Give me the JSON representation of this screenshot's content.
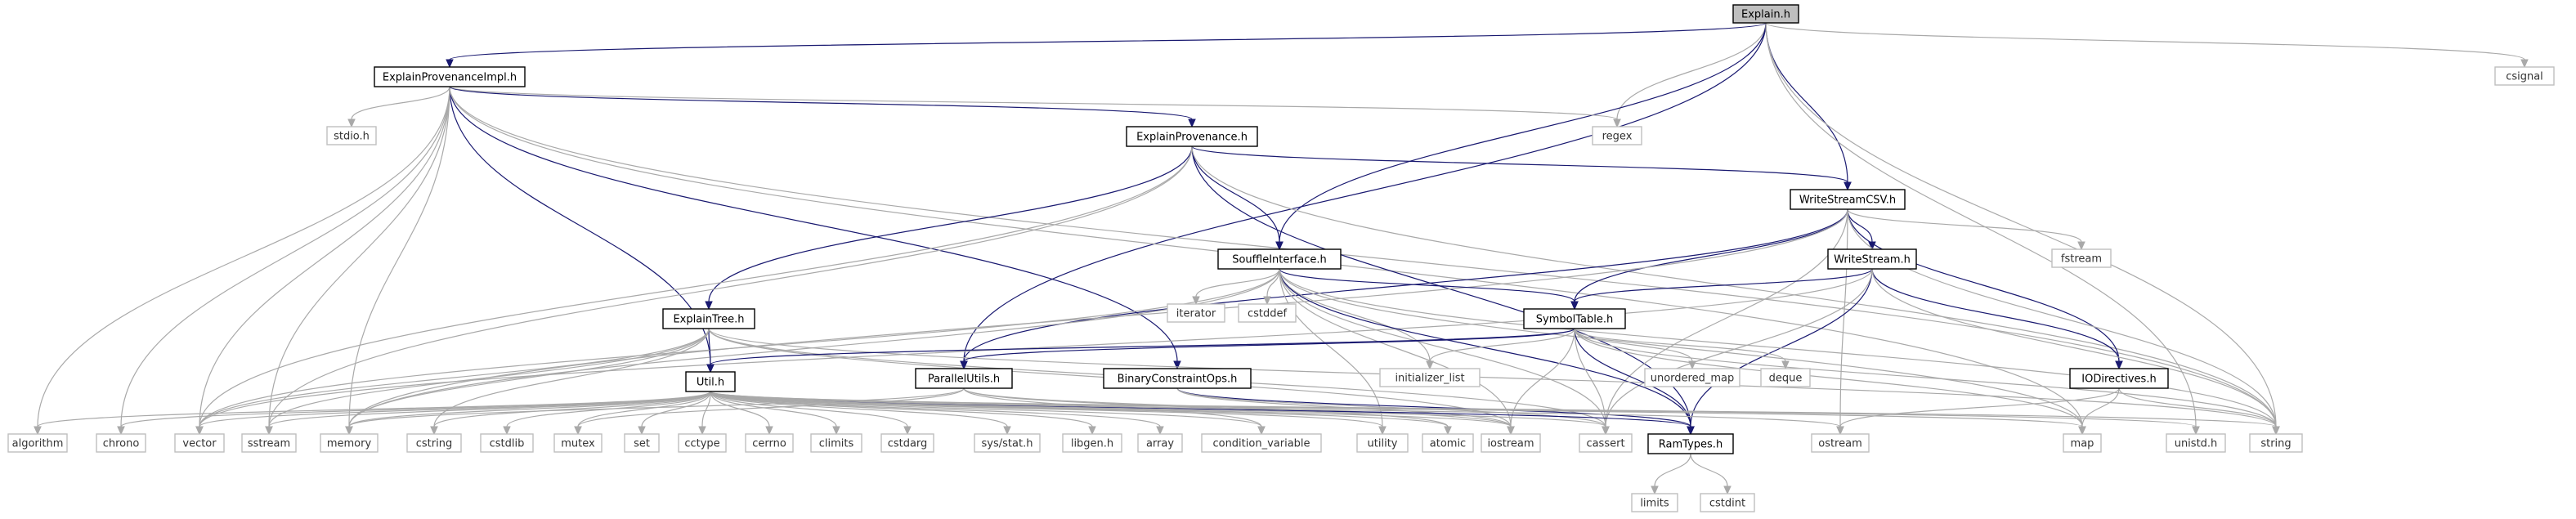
{
  "colors": {
    "edge": "#191970",
    "edge_sys": "#a9a9a9",
    "root_fill": "#bfbfbf",
    "border": "#000000",
    "sys_border": "#bfbfbf"
  },
  "nodes": [
    {
      "id": "explain_h",
      "label": "Explain.h",
      "kind": "root"
    },
    {
      "id": "explain_provenance_impl_h",
      "label": "ExplainProvenanceImpl.h",
      "kind": "local"
    },
    {
      "id": "csignal",
      "label": "csignal",
      "kind": "sys"
    },
    {
      "id": "regex",
      "label": "regex",
      "kind": "sys"
    },
    {
      "id": "stdio_h",
      "label": "stdio.h",
      "kind": "sys"
    },
    {
      "id": "explain_provenance_h",
      "label": "ExplainProvenance.h",
      "kind": "local"
    },
    {
      "id": "write_stream_csv_h",
      "label": "WriteStreamCSV.h",
      "kind": "local"
    },
    {
      "id": "fstream",
      "label": "fstream",
      "kind": "sys"
    },
    {
      "id": "souffle_interface_h",
      "label": "SouffleInterface.h",
      "kind": "local"
    },
    {
      "id": "write_stream_h",
      "label": "WriteStream.h",
      "kind": "local"
    },
    {
      "id": "iterator",
      "label": "iterator",
      "kind": "sys"
    },
    {
      "id": "cstddef",
      "label": "cstddef",
      "kind": "sys"
    },
    {
      "id": "explain_tree_h",
      "label": "ExplainTree.h",
      "kind": "local"
    },
    {
      "id": "symbol_table_h",
      "label": "SymbolTable.h",
      "kind": "local"
    },
    {
      "id": "initializer_list",
      "label": "initializer_list",
      "kind": "sys"
    },
    {
      "id": "unordered_map",
      "label": "unordered_map",
      "kind": "sys"
    },
    {
      "id": "deque",
      "label": "deque",
      "kind": "sys"
    },
    {
      "id": "parallel_utils_h",
      "label": "ParallelUtils.h",
      "kind": "local"
    },
    {
      "id": "binary_constraint_ops_h",
      "label": "BinaryConstraintOps.h",
      "kind": "local"
    },
    {
      "id": "util_h",
      "label": "Util.h",
      "kind": "local"
    },
    {
      "id": "io_directives_h",
      "label": "IODirectives.h",
      "kind": "local"
    },
    {
      "id": "algorithm",
      "label": "algorithm",
      "kind": "sys"
    },
    {
      "id": "chrono",
      "label": "chrono",
      "kind": "sys"
    },
    {
      "id": "vector",
      "label": "vector",
      "kind": "sys"
    },
    {
      "id": "sstream",
      "label": "sstream",
      "kind": "sys"
    },
    {
      "id": "memory",
      "label": "memory",
      "kind": "sys"
    },
    {
      "id": "cstring",
      "label": "cstring",
      "kind": "sys"
    },
    {
      "id": "cstdlib",
      "label": "cstdlib",
      "kind": "sys"
    },
    {
      "id": "mutex",
      "label": "mutex",
      "kind": "sys"
    },
    {
      "id": "set",
      "label": "set",
      "kind": "sys"
    },
    {
      "id": "cctype",
      "label": "cctype",
      "kind": "sys"
    },
    {
      "id": "cerrno",
      "label": "cerrno",
      "kind": "sys"
    },
    {
      "id": "climits",
      "label": "climits",
      "kind": "sys"
    },
    {
      "id": "cstdarg",
      "label": "cstdarg",
      "kind": "sys"
    },
    {
      "id": "sys_stat_h",
      "label": "sys/stat.h",
      "kind": "sys"
    },
    {
      "id": "libgen_h",
      "label": "libgen.h",
      "kind": "sys"
    },
    {
      "id": "array",
      "label": "array",
      "kind": "sys"
    },
    {
      "id": "condition_variable",
      "label": "condition_variable",
      "kind": "sys"
    },
    {
      "id": "utility",
      "label": "utility",
      "kind": "sys"
    },
    {
      "id": "atomic",
      "label": "atomic",
      "kind": "sys"
    },
    {
      "id": "iostream",
      "label": "iostream",
      "kind": "sys"
    },
    {
      "id": "cassert",
      "label": "cassert",
      "kind": "sys"
    },
    {
      "id": "ram_types_h",
      "label": "RamTypes.h",
      "kind": "local"
    },
    {
      "id": "ostream",
      "label": "ostream",
      "kind": "sys"
    },
    {
      "id": "map",
      "label": "map",
      "kind": "sys"
    },
    {
      "id": "unistd_h",
      "label": "unistd.h",
      "kind": "sys"
    },
    {
      "id": "string",
      "label": "string",
      "kind": "sys"
    },
    {
      "id": "limits",
      "label": "limits",
      "kind": "sys"
    },
    {
      "id": "cstdint",
      "label": "cstdint",
      "kind": "sys"
    }
  ],
  "edges": [
    [
      "explain_h",
      "explain_provenance_impl_h"
    ],
    [
      "explain_h",
      "csignal"
    ],
    [
      "explain_h",
      "regex"
    ],
    [
      "explain_h",
      "write_stream_csv_h"
    ],
    [
      "explain_h",
      "souffle_interface_h"
    ],
    [
      "explain_h",
      "parallel_utils_h"
    ],
    [
      "explain_h",
      "unistd_h"
    ],
    [
      "explain_h",
      "string"
    ],
    [
      "explain_provenance_impl_h",
      "regex"
    ],
    [
      "explain_provenance_impl_h",
      "stdio_h"
    ],
    [
      "explain_provenance_impl_h",
      "explain_provenance_h"
    ],
    [
      "explain_provenance_impl_h",
      "binary_constraint_ops_h"
    ],
    [
      "explain_provenance_impl_h",
      "util_h"
    ],
    [
      "explain_provenance_impl_h",
      "algorithm"
    ],
    [
      "explain_provenance_impl_h",
      "chrono"
    ],
    [
      "explain_provenance_impl_h",
      "vector"
    ],
    [
      "explain_provenance_impl_h",
      "sstream"
    ],
    [
      "explain_provenance_impl_h",
      "memory"
    ],
    [
      "explain_provenance_impl_h",
      "map"
    ],
    [
      "explain_provenance_impl_h",
      "string"
    ],
    [
      "explain_provenance_h",
      "write_stream_csv_h"
    ],
    [
      "explain_provenance_h",
      "souffle_interface_h"
    ],
    [
      "explain_provenance_h",
      "explain_tree_h"
    ],
    [
      "explain_provenance_h",
      "ram_types_h"
    ],
    [
      "explain_provenance_h",
      "vector"
    ],
    [
      "explain_provenance_h",
      "sstream"
    ],
    [
      "explain_provenance_h",
      "string"
    ],
    [
      "write_stream_csv_h",
      "fstream"
    ],
    [
      "write_stream_csv_h",
      "write_stream_h"
    ],
    [
      "write_stream_csv_h",
      "symbol_table_h"
    ],
    [
      "write_stream_csv_h",
      "io_directives_h"
    ],
    [
      "write_stream_csv_h",
      "parallel_utils_h"
    ],
    [
      "write_stream_csv_h",
      "ostream"
    ],
    [
      "write_stream_csv_h",
      "string"
    ],
    [
      "write_stream_csv_h",
      "cassert"
    ],
    [
      "write_stream_csv_h",
      "memory"
    ],
    [
      "write_stream_h",
      "symbol_table_h"
    ],
    [
      "write_stream_h",
      "io_directives_h"
    ],
    [
      "write_stream_h",
      "ram_types_h"
    ],
    [
      "write_stream_h",
      "cassert"
    ],
    [
      "write_stream_h",
      "vector"
    ],
    [
      "write_stream_h",
      "string"
    ],
    [
      "souffle_interface_h",
      "iterator"
    ],
    [
      "souffle_interface_h",
      "cstddef"
    ],
    [
      "souffle_interface_h",
      "symbol_table_h"
    ],
    [
      "souffle_interface_h",
      "initializer_list"
    ],
    [
      "souffle_interface_h",
      "ram_types_h"
    ],
    [
      "souffle_interface_h",
      "cassert"
    ],
    [
      "souffle_interface_h",
      "iostream"
    ],
    [
      "souffle_interface_h",
      "map"
    ],
    [
      "souffle_interface_h",
      "string"
    ],
    [
      "souffle_interface_h",
      "vector"
    ],
    [
      "souffle_interface_h",
      "memory"
    ],
    [
      "souffle_interface_h",
      "utility"
    ],
    [
      "explain_tree_h",
      "util_h"
    ],
    [
      "explain_tree_h",
      "cassert"
    ],
    [
      "explain_tree_h",
      "cstring"
    ],
    [
      "explain_tree_h",
      "sstream"
    ],
    [
      "explain_tree_h",
      "memory"
    ],
    [
      "explain_tree_h",
      "vector"
    ],
    [
      "explain_tree_h",
      "string"
    ],
    [
      "explain_tree_h",
      "iostream"
    ],
    [
      "symbol_table_h",
      "util_h"
    ],
    [
      "symbol_table_h",
      "parallel_utils_h"
    ],
    [
      "symbol_table_h",
      "initializer_list"
    ],
    [
      "symbol_table_h",
      "unordered_map"
    ],
    [
      "symbol_table_h",
      "deque"
    ],
    [
      "symbol_table_h",
      "ram_types_h"
    ],
    [
      "symbol_table_h",
      "cassert"
    ],
    [
      "symbol_table_h",
      "iostream"
    ],
    [
      "symbol_table_h",
      "map"
    ],
    [
      "symbol_table_h",
      "string"
    ],
    [
      "parallel_utils_h",
      "atomic"
    ],
    [
      "parallel_utils_h",
      "mutex"
    ],
    [
      "parallel_utils_h",
      "condition_variable"
    ],
    [
      "parallel_utils_h",
      "iostream"
    ],
    [
      "parallel_utils_h",
      "memory"
    ],
    [
      "binary_constraint_ops_h",
      "ram_types_h"
    ],
    [
      "binary_constraint_ops_h",
      "cassert"
    ],
    [
      "binary_constraint_ops_h",
      "iostream"
    ],
    [
      "util_h",
      "ram_types_h"
    ],
    [
      "util_h",
      "algorithm"
    ],
    [
      "util_h",
      "chrono"
    ],
    [
      "util_h",
      "vector"
    ],
    [
      "util_h",
      "sstream"
    ],
    [
      "util_h",
      "memory"
    ],
    [
      "util_h",
      "cstring"
    ],
    [
      "util_h",
      "cstdlib"
    ],
    [
      "util_h",
      "mutex"
    ],
    [
      "util_h",
      "set"
    ],
    [
      "util_h",
      "cctype"
    ],
    [
      "util_h",
      "cerrno"
    ],
    [
      "util_h",
      "climits"
    ],
    [
      "util_h",
      "cstdarg"
    ],
    [
      "util_h",
      "sys_stat_h"
    ],
    [
      "util_h",
      "libgen_h"
    ],
    [
      "util_h",
      "array"
    ],
    [
      "util_h",
      "condition_variable"
    ],
    [
      "util_h",
      "utility"
    ],
    [
      "util_h",
      "atomic"
    ],
    [
      "util_h",
      "iostream"
    ],
    [
      "util_h",
      "cassert"
    ],
    [
      "util_h",
      "ostream"
    ],
    [
      "util_h",
      "map"
    ],
    [
      "util_h",
      "unistd_h"
    ],
    [
      "util_h",
      "string"
    ],
    [
      "io_directives_h",
      "map"
    ],
    [
      "io_directives_h",
      "string"
    ],
    [
      "io_directives_h",
      "ostream"
    ],
    [
      "ram_types_h",
      "limits"
    ],
    [
      "ram_types_h",
      "cstdint"
    ]
  ]
}
